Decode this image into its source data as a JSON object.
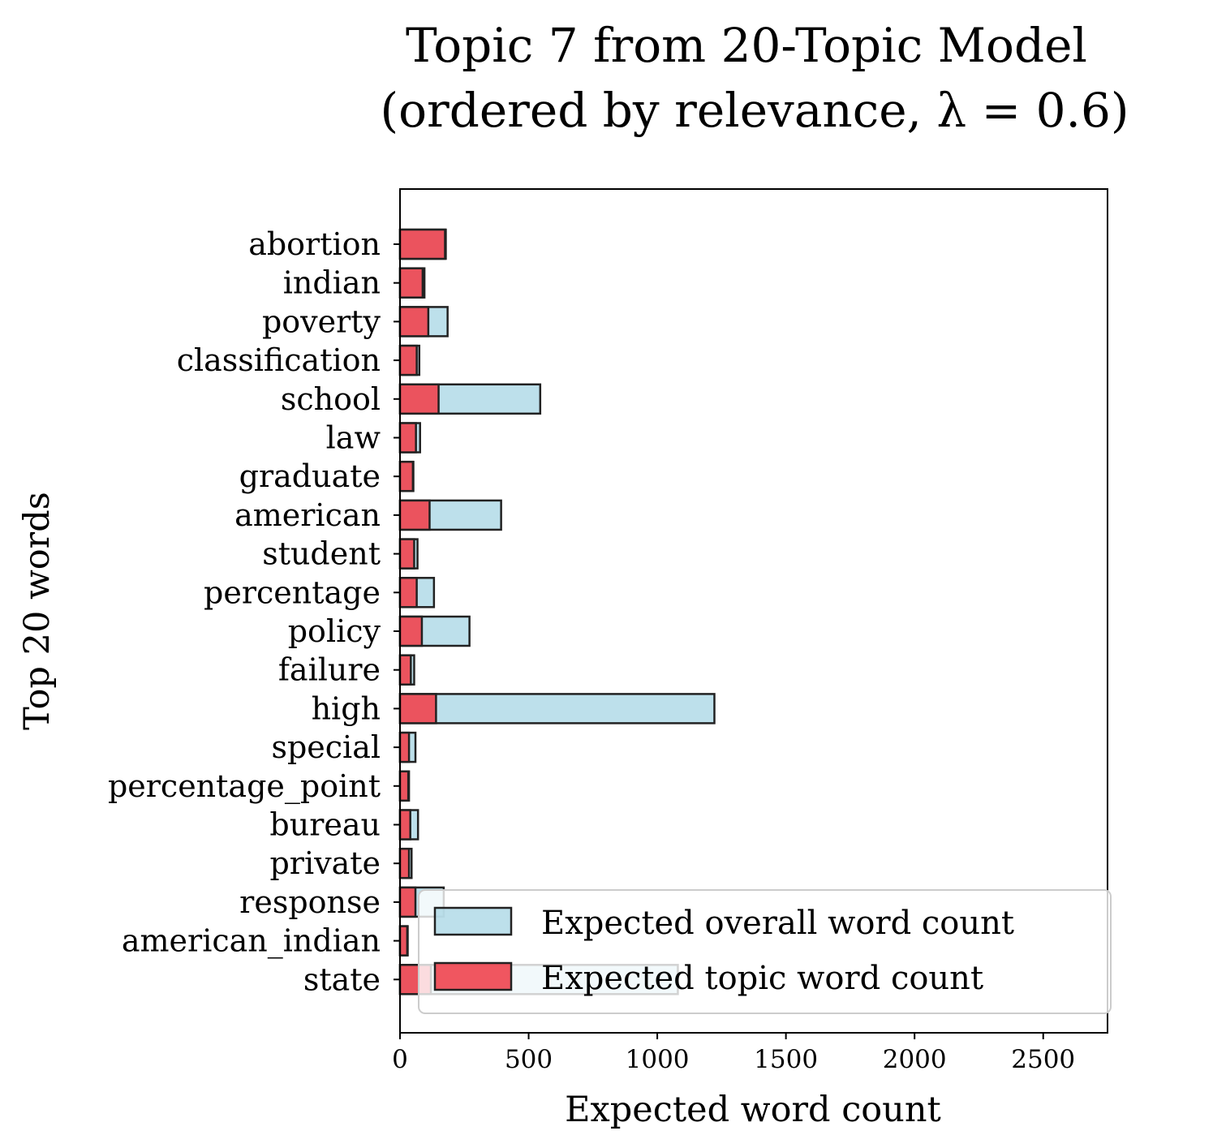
{
  "chart_data": {
    "type": "bar",
    "orientation": "horizontal",
    "title": "Topic 7 from 20-Topic Model",
    "subtitle": "(ordered by relevance, λ = 0.6)",
    "xlabel": "Expected word count",
    "ylabel": "Top 20 words",
    "xlim": [
      0,
      2750
    ],
    "xticks": [
      "0",
      "500",
      "1000",
      "1500",
      "2000",
      "2500"
    ],
    "categories": [
      "abortion",
      "indian",
      "poverty",
      "classification",
      "school",
      "law",
      "graduate",
      "american",
      "student",
      "percentage",
      "policy",
      "failure",
      "high",
      "special",
      "percentage_point",
      "bureau",
      "private",
      "response",
      "american_indian",
      "state"
    ],
    "series": [
      {
        "name": "Expected overall word count",
        "color": "#add8e6",
        "values": [
          178,
          95,
          185,
          75,
          545,
          78,
          52,
          393,
          68,
          132,
          270,
          55,
          1222,
          60,
          35,
          70,
          45,
          170,
          30,
          1080
        ]
      },
      {
        "name": "Expected topic word count",
        "color": "#f0444f",
        "values": [
          175,
          88,
          110,
          65,
          150,
          62,
          50,
          115,
          55,
          65,
          85,
          42,
          140,
          35,
          32,
          40,
          35,
          60,
          28,
          120
        ]
      }
    ],
    "grid": false,
    "legend_position": "lower-right"
  }
}
